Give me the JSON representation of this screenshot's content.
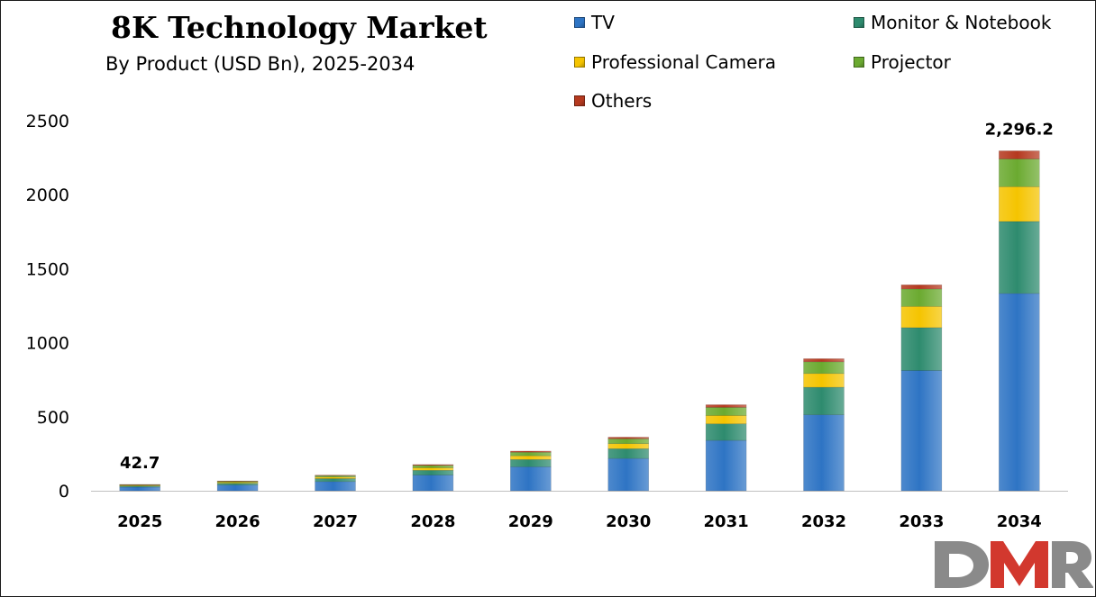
{
  "chart_data": {
    "type": "bar",
    "stacked": true,
    "title": "8K Technology Market",
    "subtitle": "By Product (USD Bn), 2025-2034",
    "categories": [
      "2025",
      "2026",
      "2027",
      "2028",
      "2029",
      "2030",
      "2031",
      "2032",
      "2033",
      "2034"
    ],
    "series": [
      {
        "name": "TV",
        "color": "#2E74C4",
        "values": [
          24.8,
          38.5,
          62,
          106,
          162,
          218,
          340,
          513,
          812,
          1333
        ]
      },
      {
        "name": "Monitor & Notebook",
        "color": "#2E8B6E",
        "values": [
          8.1,
          12.5,
          20,
          32,
          49,
          66,
          112,
          186,
          290,
          486
        ]
      },
      {
        "name": "Professional Camera",
        "color": "#F5C400",
        "values": [
          4.3,
          6.7,
          10.5,
          17,
          25,
          34,
          56,
          93,
          143,
          235
        ]
      },
      {
        "name": "Projector",
        "color": "#6BAA30",
        "values": [
          4.0,
          6.2,
          9.5,
          16,
          24,
          33,
          55,
          79,
          118,
          187
        ]
      },
      {
        "name": "Others",
        "color": "#B5391F",
        "values": [
          1.5,
          2.3,
          3.5,
          6,
          8,
          11,
          18,
          21,
          28,
          55.2
        ]
      }
    ],
    "ylim": [
      0,
      2500
    ],
    "yticks": [
      "0",
      "500",
      "1000",
      "1500",
      "2000",
      "2500"
    ],
    "data_labels": [
      {
        "category": "2025",
        "text": "42.7"
      },
      {
        "category": "2034",
        "text": "2,296.2"
      }
    ],
    "legend_position": "top-right",
    "grid": false
  },
  "logo": {
    "text": "DMR"
  }
}
